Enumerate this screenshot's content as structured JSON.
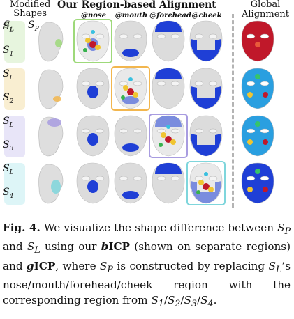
{
  "header": {
    "modified": "Modified",
    "shapes": "Shapes",
    "sL": "S",
    "sL_sub": "L",
    "sP": "S",
    "sP_sub": "P",
    "region_title": "Our Region-based Alignment",
    "global_line1": "Global",
    "global_line2": "Alignment",
    "columns": [
      "@nose",
      "@mouth",
      "@forehead",
      "@cheek"
    ]
  },
  "rows": [
    {
      "top_label": "S",
      "top_sub": "L",
      "bottom_label": "S",
      "bottom_sub": "1",
      "region": "nose",
      "highlight_color": "#9ed97a",
      "tint": "#d7efc8"
    },
    {
      "top_label": "S",
      "top_sub": "L",
      "bottom_label": "S",
      "bottom_sub": "2",
      "region": "mouth",
      "highlight_color": "#f2b64e",
      "tint": "#f5e2b3"
    },
    {
      "top_label": "S",
      "top_sub": "L",
      "bottom_label": "S",
      "bottom_sub": "3",
      "region": "forehead",
      "highlight_color": "#a89ce0",
      "tint": "#d9d3f3"
    },
    {
      "top_label": "S",
      "top_sub": "L",
      "bottom_label": "S",
      "bottom_sub": "4",
      "region": "cheek",
      "highlight_color": "#7fd6dc",
      "tint": "#c6eef1"
    }
  ],
  "caption": {
    "fig_label": "Fig. 4.",
    "t1": " We visualize the shape difference between ",
    "sP": "S",
    "sP_sub": "P",
    "t2": " and ",
    "sL": "S",
    "sL_sub": "L",
    "t3": " using our ",
    "b": "b",
    "icp1": "ICP",
    "t4": " (shown on separate regions) and ",
    "g": "g",
    "icp2": "ICP",
    "t5": ", where ",
    "sP2": "S",
    "sP2_sub": "P",
    "t6": " is constructed by replacing ",
    "sL2": "S",
    "sL2_sub": "L",
    "t7": "’s nose/mouth/forehead/cheek region with the corresponding region from ",
    "s1": "S",
    "s1_sub": "1",
    "sl1": "/",
    "s2": "S",
    "s2_sub": "2",
    "sl2": "/",
    "s3": "S",
    "s3_sub": "3",
    "sl3": "/",
    "s4": "S",
    "s4_sub": "4",
    "t8": "."
  },
  "colors": {
    "mask_gray": "#dcdcdc",
    "diff_blue": "#1f3fd6",
    "diff_red": "#c0182a",
    "diff_yellow": "#f0c531",
    "dash": "#b4b4b4"
  }
}
